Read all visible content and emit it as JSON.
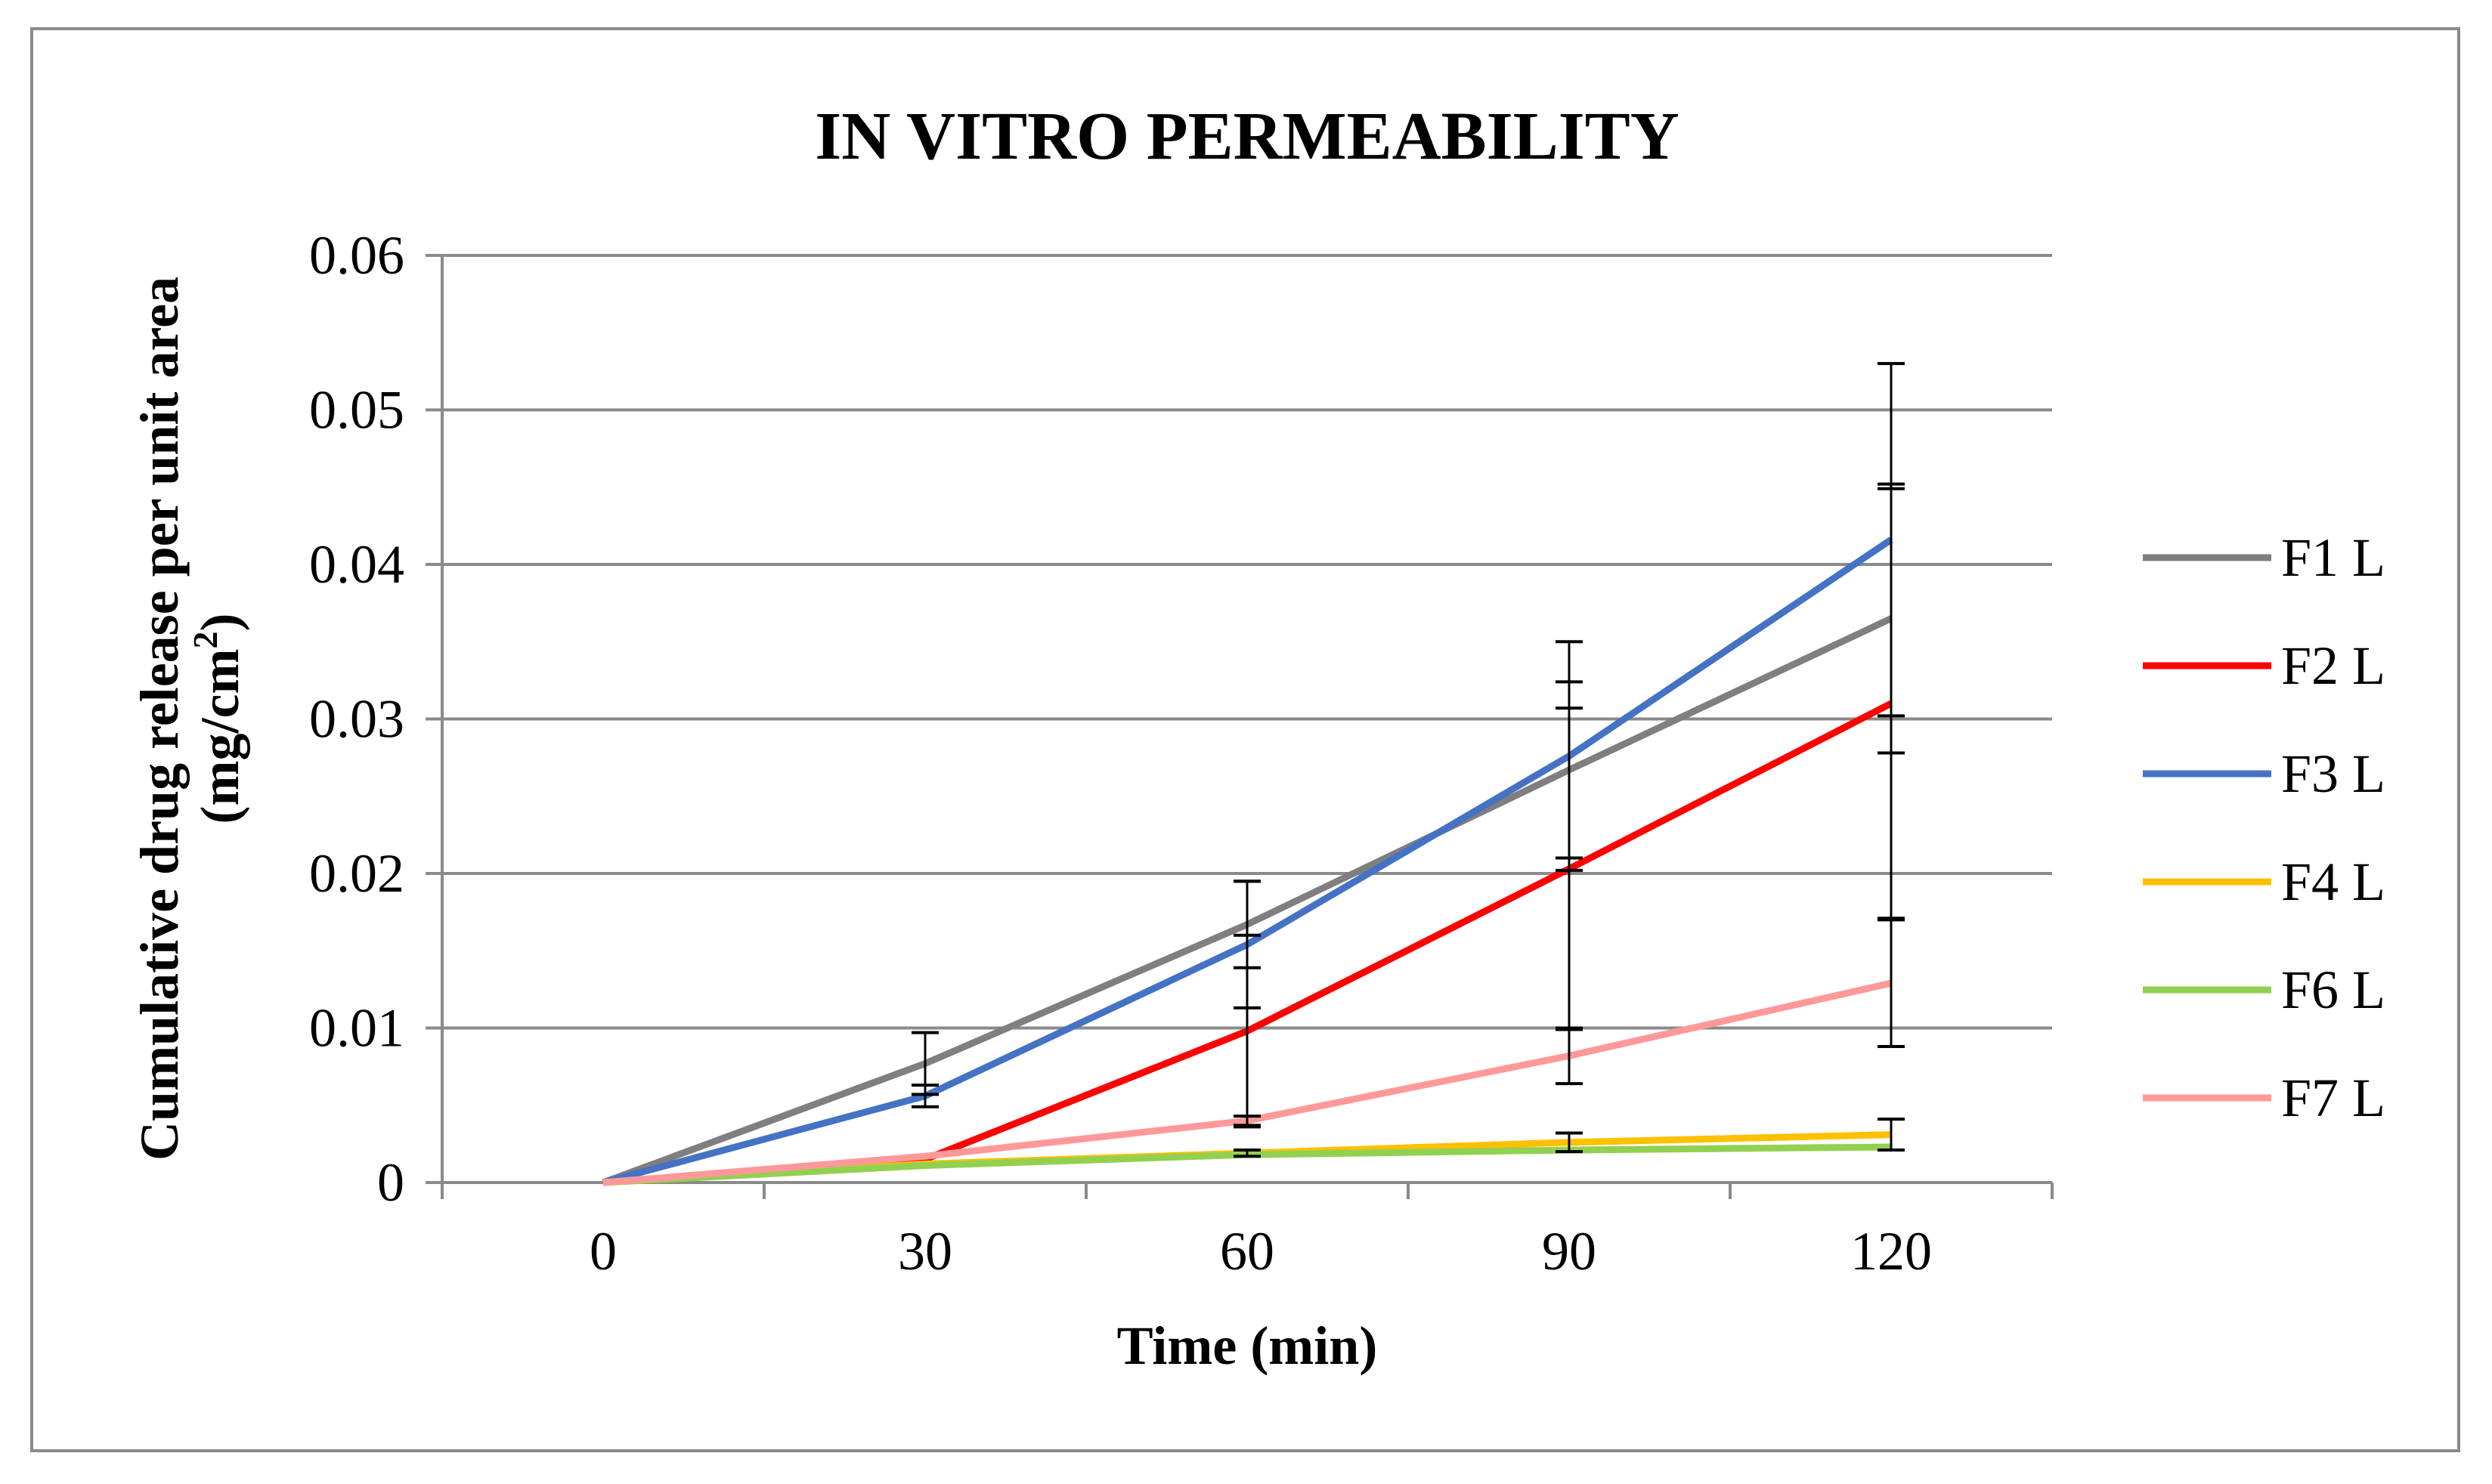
{
  "chart_data": {
    "type": "line",
    "title": "IN VITRO PERMEABILITY",
    "xlabel": "Time (min)",
    "ylabel_line1": "Cumulative drug release per unit area",
    "ylabel_line2": "(mg/cm",
    "ylabel_sup": "2",
    "ylabel_close": ")",
    "categories": [
      "0",
      "30",
      "60",
      "90",
      "120"
    ],
    "x": [
      0,
      30,
      60,
      90,
      120
    ],
    "ylim": [
      0,
      0.06
    ],
    "yticks": [
      0,
      0.01,
      0.02,
      0.03,
      0.04,
      0.05,
      0.06
    ],
    "ytick_labels": [
      "0",
      "0.01",
      "0.02",
      "0.03",
      "0.04",
      "0.05",
      "0.06"
    ],
    "grid": true,
    "legend_position": "right",
    "series": [
      {
        "name": "F1 L",
        "color": "#7f7f7f",
        "values": [
          0,
          0.0077,
          0.0167,
          0.0267,
          0.0365
        ],
        "errors": [
          0,
          0.002,
          0.0028,
          0.0057,
          0.0087
        ]
      },
      {
        "name": "F2 L",
        "color": "#ff0000",
        "values": [
          0,
          0.0015,
          0.0098,
          0.0203,
          0.031
        ],
        "errors": [
          0,
          0,
          0.0062,
          0.0104,
          0.0139
        ]
      },
      {
        "name": "F3 L",
        "color": "#4472c4",
        "values": [
          0,
          0.0056,
          0.0154,
          0.0276,
          0.0416
        ],
        "errors": [
          0,
          0.0007,
          0.0041,
          0.0074,
          0.0114
        ]
      },
      {
        "name": "F4 L",
        "color": "#ffc000",
        "values": [
          0,
          0.0012,
          0.0019,
          0.0026,
          0.0031
        ],
        "errors": [
          0,
          0,
          0.0002,
          0.0006,
          0.001
        ]
      },
      {
        "name": "F6 L",
        "color": "#92d050",
        "values": [
          0,
          0.0011,
          0.0018,
          0.0021,
          0.0023
        ],
        "errors": [
          0,
          0,
          0,
          0,
          0
        ]
      },
      {
        "name": "F7 L",
        "color": "#ff9999",
        "values": [
          0,
          0.0017,
          0.004,
          0.0082,
          0.0129
        ],
        "errors": [
          0,
          0,
          0.0003,
          0.0018,
          0.0041
        ]
      }
    ]
  }
}
